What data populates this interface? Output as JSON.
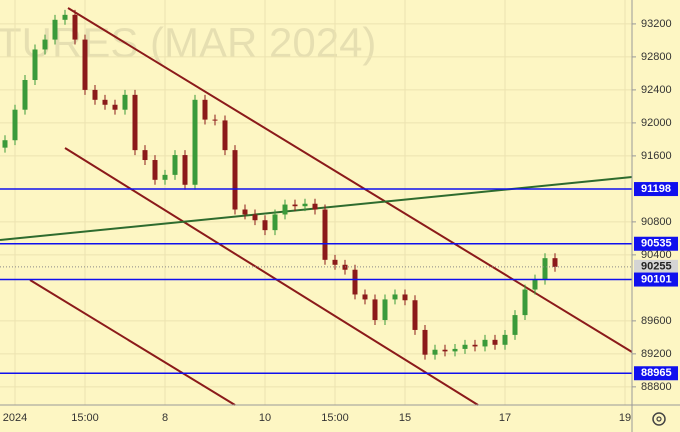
{
  "chart_data": {
    "type": "candlestick",
    "watermark": "TURES (MAR 2024)",
    "categories": [
      null,
      "2024",
      null,
      null,
      null,
      null,
      null,
      null,
      "15:00",
      null,
      null,
      null,
      null,
      null,
      null,
      null,
      "8",
      null,
      null,
      null,
      null,
      null,
      null,
      null,
      null,
      null,
      "10",
      null,
      null,
      null,
      null,
      null,
      null,
      "15:00",
      null,
      null,
      null,
      null,
      null,
      null,
      "15",
      null,
      null,
      null,
      null,
      null,
      null,
      null,
      null,
      null,
      "17",
      null,
      null,
      null,
      null,
      null,
      null,
      null,
      null,
      null,
      null,
      null,
      "19"
    ],
    "open": [
      91700,
      91790,
      92160,
      92520,
      92890,
      93010,
      93250,
      93310,
      93010,
      92400,
      92280,
      92220,
      92160,
      92340,
      91670,
      91550,
      91310,
      91370,
      91610,
      91250,
      92280,
      92040,
      92030,
      91670,
      90950,
      90890,
      90820,
      90700,
      90890,
      91010,
      90990,
      91020,
      90950,
      90340,
      90280,
      90220,
      89920,
      89860,
      89610,
      89860,
      89920,
      89850,
      89490,
      89190,
      89250,
      89230,
      89260,
      89310,
      89290,
      89370,
      89310,
      89430,
      89670,
      89980,
      90100,
      90360,
      null,
      null,
      null,
      null,
      null,
      null,
      null
    ],
    "high": [
      91850,
      92220,
      92580,
      92950,
      93070,
      93310,
      93370,
      93370,
      93070,
      92460,
      92340,
      92280,
      92400,
      92400,
      91730,
      91610,
      91430,
      91670,
      91670,
      92340,
      92340,
      92100,
      92090,
      91730,
      91010,
      90950,
      90880,
      90950,
      91070,
      91070,
      91080,
      91080,
      91010,
      90400,
      90340,
      90280,
      89980,
      89920,
      89920,
      89980,
      89980,
      89910,
      89550,
      89310,
      89310,
      89320,
      89370,
      89370,
      89430,
      89430,
      89490,
      89730,
      90040,
      90160,
      90420,
      90420,
      null,
      null,
      null,
      null,
      null,
      null,
      null
    ],
    "low": [
      91640,
      91730,
      92100,
      92460,
      92830,
      92950,
      93190,
      92950,
      92340,
      92220,
      92160,
      92100,
      92100,
      91610,
      91490,
      91250,
      91250,
      91310,
      91190,
      91190,
      91980,
      91970,
      91610,
      90890,
      90830,
      90760,
      90640,
      90640,
      90830,
      90930,
      90930,
      90890,
      90280,
      90220,
      90160,
      89860,
      89800,
      89550,
      89550,
      89800,
      89790,
      89430,
      89130,
      89130,
      89170,
      89170,
      89200,
      89230,
      89230,
      89250,
      89250,
      89370,
      89610,
      89920,
      90040,
      90195,
      null,
      null,
      null,
      null,
      null,
      null,
      null
    ],
    "close": [
      91790,
      92160,
      92520,
      92890,
      93010,
      93250,
      93310,
      93010,
      92400,
      92280,
      92220,
      92160,
      92340,
      91670,
      91550,
      91310,
      91370,
      91610,
      91250,
      92280,
      92040,
      92030,
      91670,
      90950,
      90890,
      90820,
      90700,
      90890,
      91010,
      90990,
      91020,
      90950,
      90340,
      90280,
      90220,
      89920,
      89860,
      89610,
      89860,
      89920,
      89850,
      89490,
      89190,
      89250,
      89230,
      89260,
      89310,
      89290,
      89370,
      89310,
      89430,
      89670,
      89980,
      90100,
      90360,
      90255,
      null,
      null,
      null,
      null,
      null,
      null,
      null
    ],
    "up_color": "#3a9a3a",
    "down_color": "#8b1a1a",
    "levels": [
      91198,
      90535,
      90101,
      88965
    ],
    "level_color": "#1010ee",
    "current_price": 90255,
    "ylim": [
      88580,
      93490
    ],
    "yticks": [
      88800,
      89200,
      89600,
      90400,
      90800,
      91600,
      92000,
      92400,
      92800,
      93200
    ],
    "grid": true
  }
}
